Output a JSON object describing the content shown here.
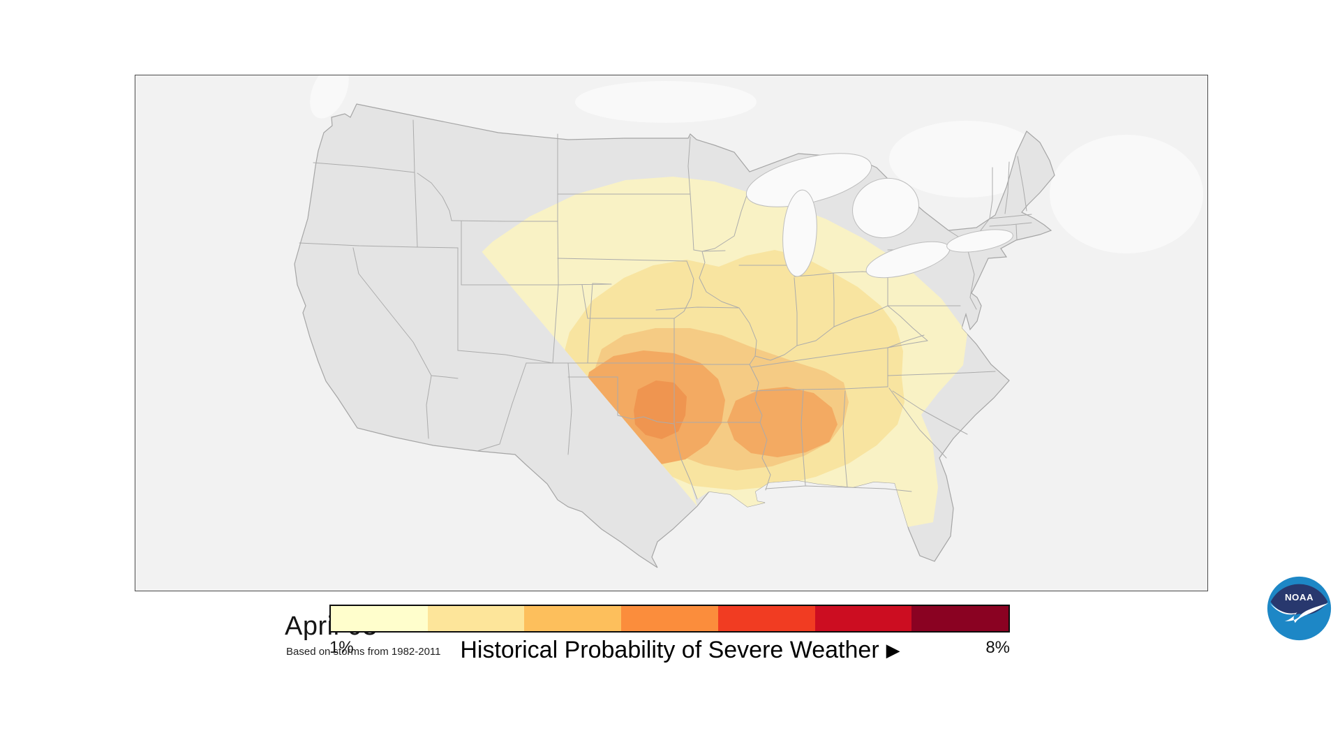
{
  "frame": {
    "date": "April 03",
    "subtitle": "Based on storms from 1982-2011"
  },
  "legend": {
    "title": "Historical Probability of Severe Weather",
    "arrow": "▶",
    "min_label": "1%",
    "max_label": "8%",
    "colors": [
      "#FFFECC",
      "#FDE59A",
      "#FDBF5C",
      "#FB8D3C",
      "#F13C22",
      "#CC0D21",
      "#8A0222"
    ]
  },
  "map": {
    "background_color": "#F2F2F2",
    "land_color": "#E4E4E4",
    "border_color": "#ABABAB",
    "lake_color": "#FAFAFA",
    "contour_colors": [
      "#F9F2C5",
      "#F8E4A0",
      "#F5CB84",
      "#F3AA62",
      "#EF9550"
    ]
  },
  "noaa_logo": {
    "text": "NOAA",
    "navy": "#28386E",
    "blue": "#1D87C6"
  }
}
